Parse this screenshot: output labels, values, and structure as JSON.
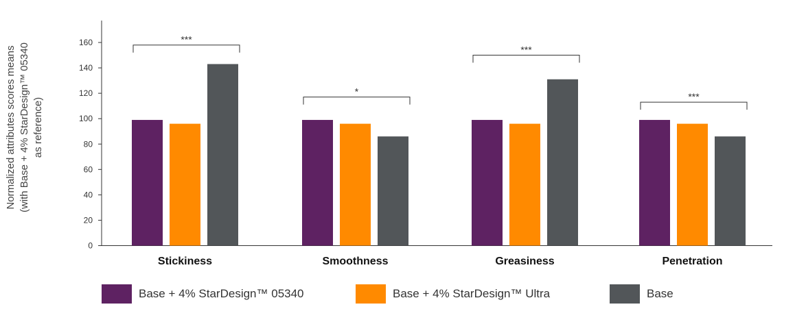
{
  "chart_data": {
    "type": "bar",
    "ylabel": [
      "Normalized attributes scores means",
      "(with Base + 4% StarDesign™ 05340",
      "as reference)"
    ],
    "ylim": [
      0,
      175
    ],
    "yticks": [
      0,
      20,
      40,
      60,
      80,
      100,
      120,
      140,
      160
    ],
    "grid": false,
    "legend_position": "bottom",
    "categories": [
      "Stickiness",
      "Smoothness",
      "Greasiness",
      "Penetration"
    ],
    "series": [
      {
        "name": "Base + 4% StarDesign™ 05340",
        "values": [
          99,
          99,
          99,
          99
        ],
        "color": "#5e2262"
      },
      {
        "name": "Base + 4% StarDesign™ Ultra",
        "values": [
          96,
          96,
          96,
          96
        ],
        "color": "#ff8a00"
      },
      {
        "name": "Base",
        "values": [
          143,
          86,
          131,
          86
        ],
        "color": "#525659"
      }
    ],
    "significance": [
      {
        "category": "Stickiness",
        "label": "***",
        "level": 158
      },
      {
        "category": "Smoothness",
        "label": "*",
        "level": 117
      },
      {
        "category": "Greasiness",
        "label": "***",
        "level": 150
      },
      {
        "category": "Penetration",
        "label": "***",
        "level": 113
      }
    ]
  }
}
